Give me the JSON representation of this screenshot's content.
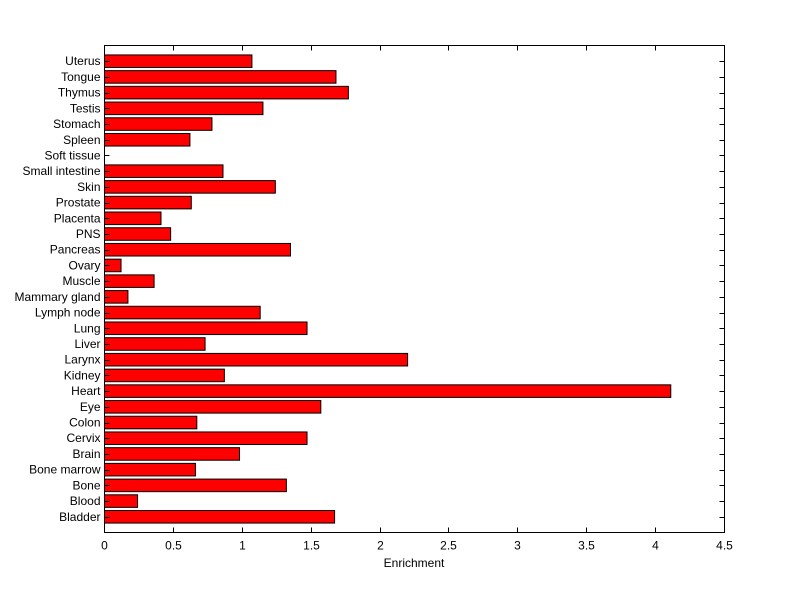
{
  "chart_data": {
    "type": "bar",
    "orientation": "horizontal",
    "title": "",
    "xlabel": "Enrichment",
    "ylabel": "",
    "xlim": [
      0,
      4.5
    ],
    "xticks": [
      0,
      0.5,
      1,
      1.5,
      2,
      2.5,
      3,
      3.5,
      4,
      4.5
    ],
    "xtick_labels": [
      "0",
      "0.5",
      "1",
      "1.5",
      "2",
      "2.5",
      "3",
      "3.5",
      "4",
      "4.5"
    ],
    "grid": false,
    "bar_color": "#ff0000",
    "edge_color": "#000000",
    "categories": [
      "Bladder",
      "Blood",
      "Bone",
      "Bone marrow",
      "Brain",
      "Cervix",
      "Colon",
      "Eye",
      "Heart",
      "Kidney",
      "Larynx",
      "Liver",
      "Lung",
      "Lymph node",
      "Mammary gland",
      "Muscle",
      "Ovary",
      "Pancreas",
      "PNS",
      "Placenta",
      "Prostate",
      "Skin",
      "Small intestine",
      "Soft tissue",
      "Spleen",
      "Stomach",
      "Testis",
      "Thymus",
      "Tongue",
      "Uterus"
    ],
    "values": [
      1.67,
      0.24,
      1.32,
      0.66,
      0.98,
      1.47,
      0.67,
      1.57,
      4.11,
      0.87,
      2.2,
      0.73,
      1.47,
      1.13,
      0.17,
      0.36,
      0.12,
      1.35,
      0.48,
      0.41,
      0.63,
      1.24,
      0.86,
      0,
      0.62,
      0.78,
      1.15,
      1.77,
      1.68,
      1.07
    ]
  }
}
